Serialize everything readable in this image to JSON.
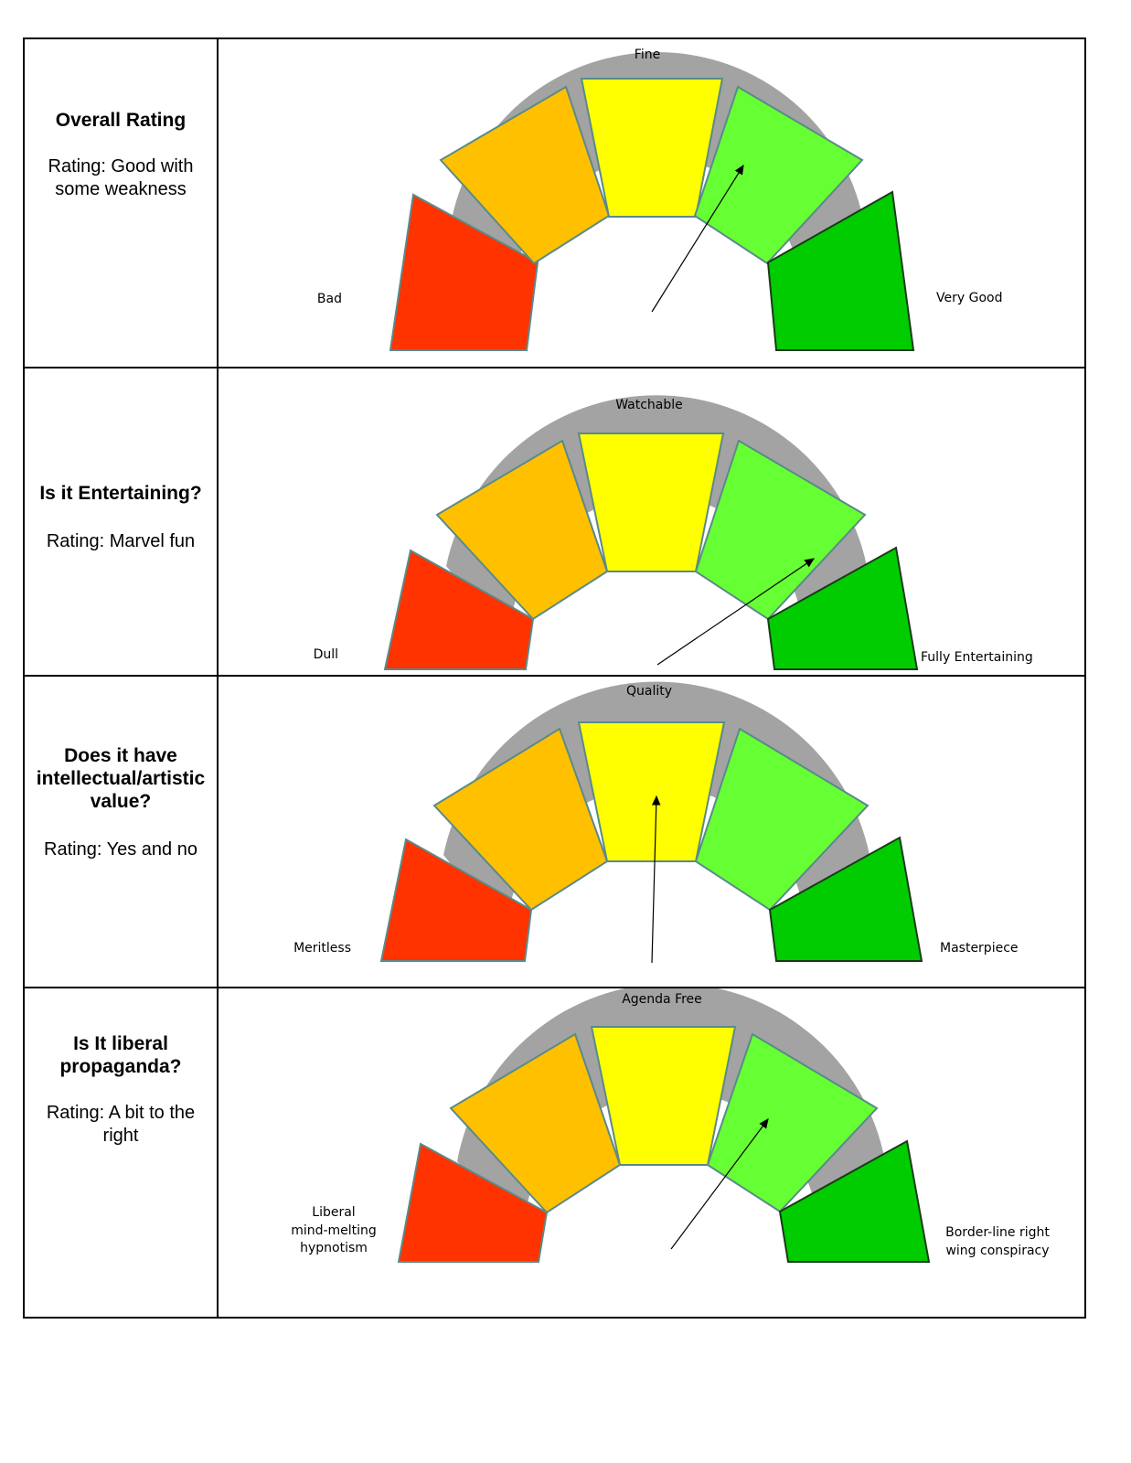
{
  "colors": {
    "track": "#a3a3a3",
    "bad": "#ff3300",
    "low": "#ffc000",
    "mid": "#ffff00",
    "good": "#66ff33",
    "best": "#00cc00",
    "outline": "#5a8a8a"
  },
  "rows": [
    {
      "title": "Overall Rating",
      "rating": "Rating: Good with some weakness",
      "top_label": "Fine",
      "left_label": [
        "Bad"
      ],
      "right_label": [
        "Very Good"
      ]
    },
    {
      "title": "Is it Entertaining?",
      "rating": "Rating: Marvel fun",
      "top_label": "Watchable",
      "left_label": [
        "Dull"
      ],
      "right_label": [
        "Fully Entertaining"
      ]
    },
    {
      "title": "Does it have intellectual/artistic value?",
      "rating": "Rating: Yes and no",
      "top_label": "Quality",
      "left_label": [
        "Meritless"
      ],
      "right_label": [
        "Masterpiece"
      ]
    },
    {
      "title": "Is It liberal propaganda?",
      "rating": "Rating: A bit to the right",
      "top_label": "Agenda Free",
      "left_label": [
        "Liberal",
        "mind-melting",
        "hypnotism"
      ],
      "right_label": [
        "Border-line right",
        "wing conspiracy"
      ]
    }
  ]
}
